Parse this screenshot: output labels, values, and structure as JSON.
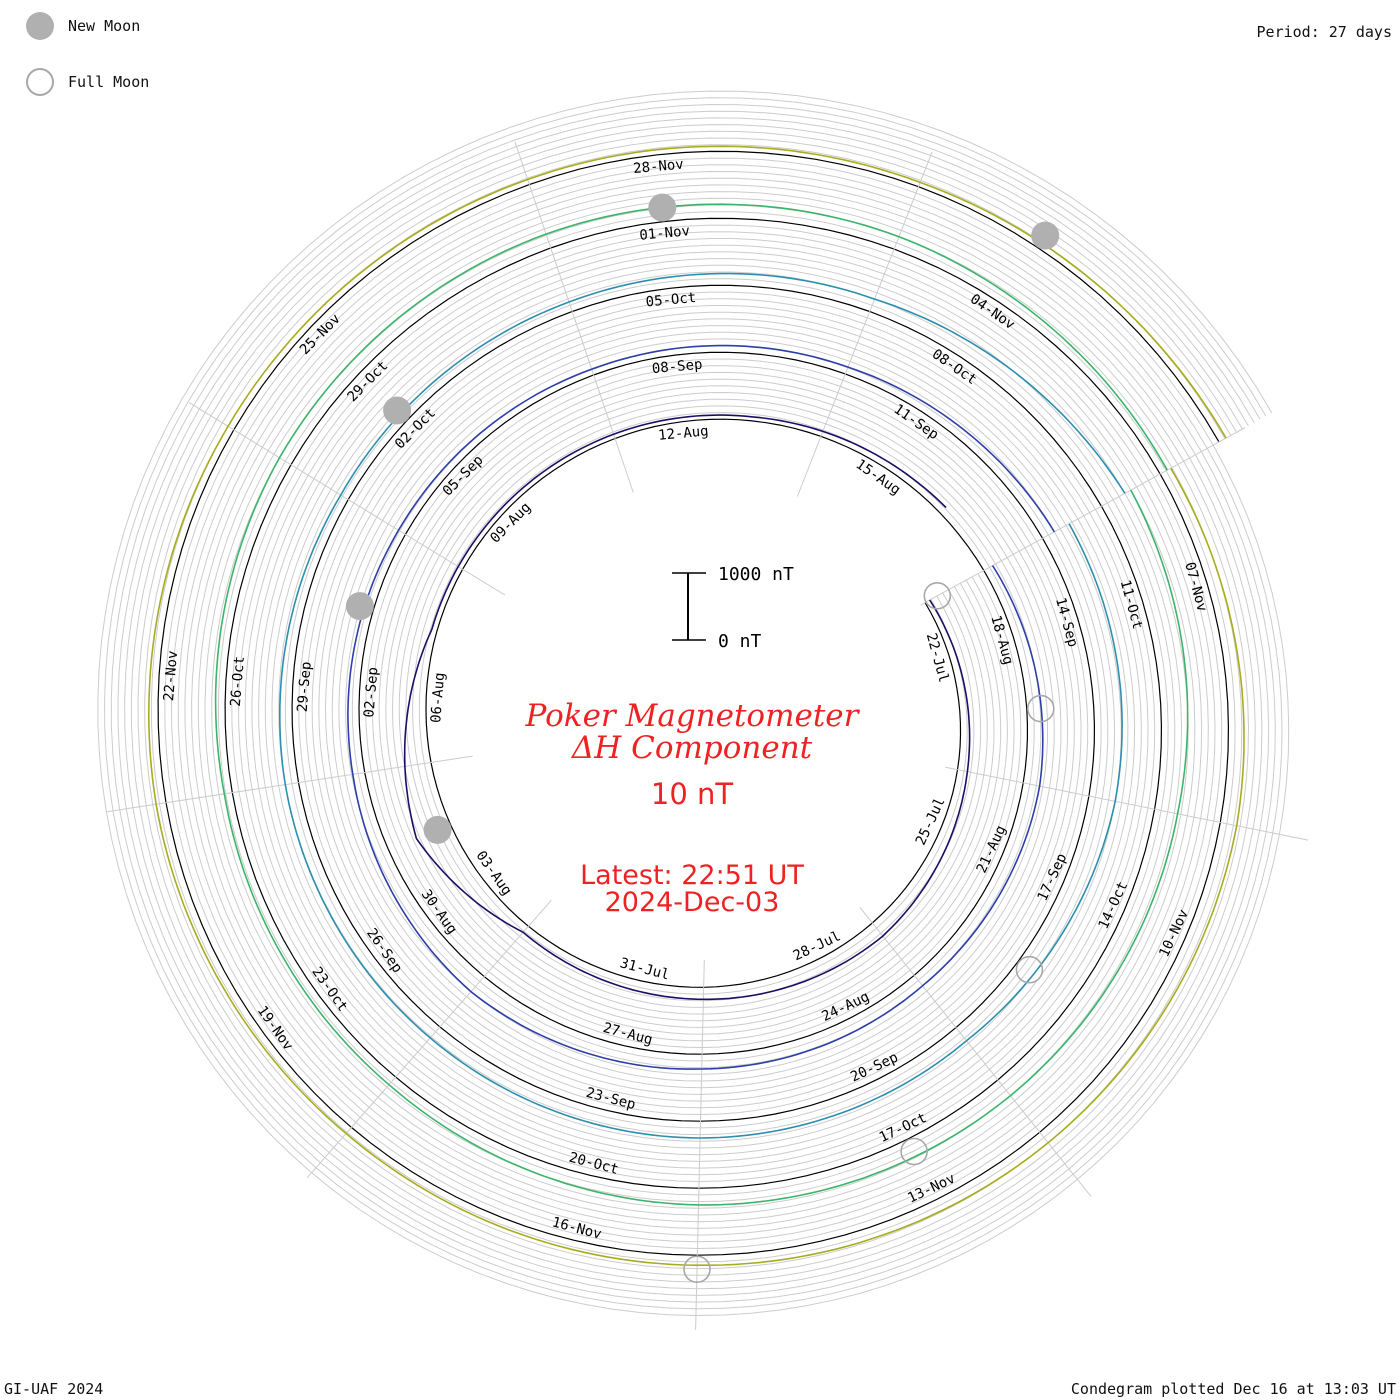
{
  "legend": {
    "new_moon_label": "New Moon",
    "full_moon_label": "Full Moon",
    "new_moon_color": "#b0b0b0",
    "full_moon_color": "#a8a8a8"
  },
  "period_label": "Period: 27 days",
  "footer": {
    "left": "GI-UAF 2024",
    "right": "Condegram plotted Dec 16 at 13:03 UT"
  },
  "scale_bar": {
    "top_label": "1000 nT",
    "bottom_label": "0 nT"
  },
  "center_text": {
    "title_line1": "Poker Magnetometer",
    "title_line2": "ΔH Component",
    "title_line3": "10 nT",
    "latest_line1": "Latest: 22:51 UT",
    "latest_line2": "2024-Dec-03",
    "color": "#ee2222"
  },
  "chart_data": {
    "type": "line",
    "subtype": "spiral condegram",
    "period_days": 27,
    "start_date": "2024-07-21",
    "end_date": "2024-12-03",
    "scale_nT": 1000,
    "grid": true,
    "date_labels": [
      "22-Jul",
      "25-Jul",
      "28-Jul",
      "31-Jul",
      "03-Aug",
      "06-Aug",
      "09-Aug",
      "12-Aug",
      "15-Aug",
      "18-Aug",
      "21-Aug",
      "24-Aug",
      "27-Aug",
      "30-Aug",
      "02-Sep",
      "05-Sep",
      "08-Sep",
      "11-Sep",
      "14-Sep",
      "17-Sep",
      "20-Sep",
      "23-Sep",
      "26-Sep",
      "29-Sep",
      "02-Oct",
      "05-Oct",
      "08-Oct",
      "11-Oct",
      "14-Oct",
      "17-Oct",
      "20-Oct",
      "23-Oct",
      "26-Oct",
      "29-Oct",
      "01-Nov",
      "04-Nov",
      "07-Nov",
      "10-Nov",
      "13-Nov",
      "16-Nov",
      "19-Nov",
      "22-Nov",
      "25-Nov",
      "28-Nov"
    ],
    "new_moons": [
      "2024-08-04",
      "2024-09-03",
      "2024-10-02",
      "2024-11-01",
      "2024-12-01"
    ],
    "full_moons": [
      "2024-07-21",
      "2024-08-19",
      "2024-09-18",
      "2024-10-17",
      "2024-11-15"
    ],
    "series": [
      {
        "color": "#1a0f66",
        "x": [
          "2024-07-21",
          "2024-07-24",
          "2024-07-27",
          "2024-07-30",
          "2024-08-02",
          "2024-08-04",
          "2024-08-07",
          "2024-08-10",
          "2024-08-13",
          "2024-08-16"
        ],
        "y": [
          80,
          150,
          250,
          180,
          120,
          550,
          80,
          70,
          60,
          120
        ]
      },
      {
        "color": "#2d3fa8",
        "x": [
          "2024-08-17",
          "2024-08-20",
          "2024-08-23",
          "2024-08-26",
          "2024-08-29",
          "2024-09-01",
          "2024-09-04",
          "2024-09-07",
          "2024-09-10",
          "2024-09-13"
        ],
        "y": [
          150,
          250,
          200,
          220,
          300,
          180,
          120,
          90,
          110,
          200
        ]
      },
      {
        "color": "#2c8fb0",
        "x": [
          "2024-09-13",
          "2024-09-16",
          "2024-09-19",
          "2024-09-22",
          "2024-09-25",
          "2024-09-28",
          "2024-10-01",
          "2024-10-04",
          "2024-10-07",
          "2024-10-10"
        ],
        "y": [
          450,
          400,
          250,
          250,
          220,
          200,
          130,
          150,
          200,
          400
        ]
      },
      {
        "color": "#3cb46a",
        "x": [
          "2024-10-10",
          "2024-10-13",
          "2024-10-16",
          "2024-10-19",
          "2024-10-22",
          "2024-10-25",
          "2024-10-28",
          "2024-10-31",
          "2024-11-03",
          "2024-11-06"
        ],
        "y": [
          500,
          350,
          300,
          250,
          150,
          120,
          200,
          220,
          200,
          120
        ]
      },
      {
        "color": "#a8ac1e",
        "x": [
          "2024-11-06",
          "2024-11-09",
          "2024-11-12",
          "2024-11-15",
          "2024-11-18",
          "2024-11-21",
          "2024-11-24",
          "2024-11-27",
          "2024-11-30",
          "2024-12-03"
        ],
        "y": [
          180,
          250,
          200,
          150,
          120,
          150,
          100,
          80,
          70,
          120
        ]
      }
    ]
  }
}
